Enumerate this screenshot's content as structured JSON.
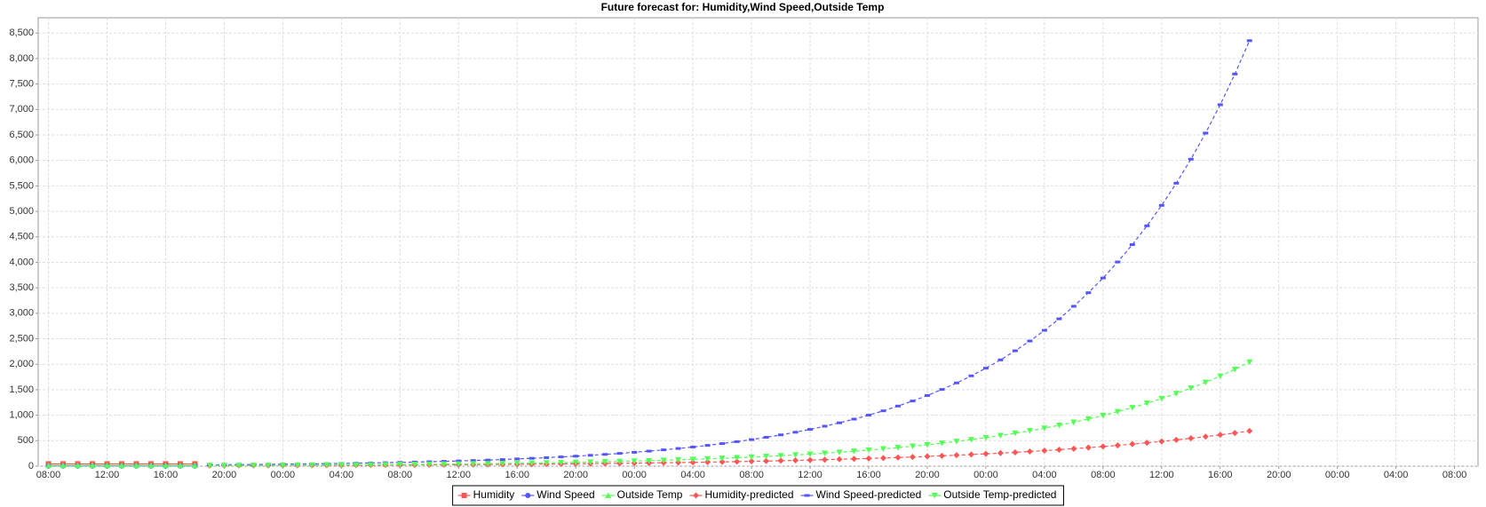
{
  "chart_data": {
    "type": "line",
    "title": "Future forecast for: Humidity,Wind Speed,Outside Temp",
    "categories": [
      "08:00",
      null,
      null,
      null,
      "12:00",
      null,
      null,
      null,
      "16:00",
      null,
      null,
      null,
      "20:00",
      null,
      null,
      null,
      "00:00",
      null,
      null,
      null,
      "04:00",
      null,
      null,
      null,
      "08:00",
      null,
      null,
      null,
      "12:00",
      null,
      null,
      null,
      "16:00",
      null,
      null,
      null,
      "20:00",
      null,
      null,
      null,
      "00:00",
      null,
      null,
      null,
      "04:00",
      null,
      null,
      null,
      "08:00",
      null,
      null,
      null,
      "12:00",
      null,
      null,
      null,
      "16:00",
      null,
      null,
      null,
      "20:00",
      null,
      null,
      null,
      "00:00",
      null,
      null,
      null,
      "04:00",
      null,
      null,
      null,
      "08:00",
      null,
      null,
      null,
      "12:00",
      null,
      null,
      null,
      "16:00",
      null,
      null,
      null,
      "20:00",
      null,
      null,
      null,
      "00:00",
      null,
      null,
      null,
      "04:00",
      null,
      null,
      null,
      "08:00"
    ],
    "ylim": [
      0,
      8800
    ],
    "yticks": [
      0,
      500,
      {
        "value": 1000,
        "label": "1,000"
      },
      {
        "value": 1500,
        "label": "1,500"
      },
      {
        "value": 2000,
        "label": "2,000"
      },
      {
        "value": 2500,
        "label": "2,500"
      },
      {
        "value": 3000,
        "label": "3,000"
      },
      {
        "value": 3500,
        "label": "3,500"
      },
      {
        "value": 4000,
        "label": "4,000"
      },
      {
        "value": 4500,
        "label": "4,500"
      },
      {
        "value": 5000,
        "label": "5,000"
      },
      {
        "value": 5500,
        "label": "5,500"
      },
      {
        "value": 6000,
        "label": "6,000"
      },
      {
        "value": 6500,
        "label": "6,500"
      },
      {
        "value": 7000,
        "label": "7,000"
      },
      {
        "value": 7500,
        "label": "7,500"
      },
      {
        "value": 8000,
        "label": "8,000"
      },
      {
        "value": 8500,
        "label": "8,500"
      }
    ],
    "grid": true,
    "legend": "bottom",
    "series": [
      {
        "name": "Humidity",
        "color": "#ff5555",
        "marker": "square",
        "dashed": false,
        "values": [
          45,
          45,
          45,
          45,
          45,
          45,
          45,
          45,
          45,
          45,
          45,
          null,
          null,
          null,
          null,
          null,
          null,
          null,
          null,
          null,
          null,
          null,
          null,
          null,
          null,
          null,
          null,
          null,
          null,
          null,
          null,
          null,
          null,
          null,
          null,
          null,
          null,
          null,
          null,
          null,
          null,
          null,
          null,
          null,
          null,
          null,
          null,
          null,
          null,
          null,
          null,
          null,
          null,
          null,
          null,
          null,
          null,
          null,
          null,
          null,
          null,
          null,
          null,
          null,
          null,
          null,
          null,
          null,
          null,
          null,
          null,
          null,
          null,
          null,
          null,
          null,
          null,
          null,
          null,
          null,
          null,
          null,
          null,
          null,
          null,
          null,
          null,
          null,
          null,
          null,
          null,
          null,
          null,
          null,
          null,
          null,
          null
        ]
      },
      {
        "name": "Wind Speed",
        "color": "#5555ff",
        "marker": "circle",
        "dashed": false,
        "values": [
          5,
          5,
          5,
          5,
          5,
          5,
          5,
          5,
          5,
          5,
          5,
          null,
          null,
          null,
          null,
          null,
          null,
          null,
          null,
          null,
          null,
          null,
          null,
          null,
          null,
          null,
          null,
          null,
          null,
          null,
          null,
          null,
          null,
          null,
          null,
          null,
          null,
          null,
          null,
          null,
          null,
          null,
          null,
          null,
          null,
          null,
          null,
          null,
          null,
          null,
          null,
          null,
          null,
          null,
          null,
          null,
          null,
          null,
          null,
          null,
          null,
          null,
          null,
          null,
          null,
          null,
          null,
          null,
          null,
          null,
          null,
          null,
          null,
          null,
          null,
          null,
          null,
          null,
          null,
          null,
          null,
          null,
          null,
          null,
          null,
          null,
          null,
          null,
          null,
          null,
          null,
          null,
          null,
          null,
          null,
          null,
          null
        ]
      },
      {
        "name": "Outside Temp",
        "color": "#55ff55",
        "marker": "triangle-up",
        "dashed": false,
        "values": [
          15,
          15,
          15,
          15,
          15,
          15,
          15,
          15,
          15,
          15,
          15,
          null,
          null,
          null,
          null,
          null,
          null,
          null,
          null,
          null,
          null,
          null,
          null,
          null,
          null,
          null,
          null,
          null,
          null,
          null,
          null,
          null,
          null,
          null,
          null,
          null,
          null,
          null,
          null,
          null,
          null,
          null,
          null,
          null,
          null,
          null,
          null,
          null,
          null,
          null,
          null,
          null,
          null,
          null,
          null,
          null,
          null,
          null,
          null,
          null,
          null,
          null,
          null,
          null,
          null,
          null,
          null,
          null,
          null,
          null,
          null,
          null,
          null,
          null,
          null,
          null,
          null,
          null,
          null,
          null,
          null,
          null,
          null,
          null,
          null,
          null,
          null,
          null,
          null,
          null,
          null,
          null,
          null,
          null,
          null,
          null,
          null
        ]
      },
      {
        "name": "Humidity-predicted",
        "color": "#ff5555",
        "marker": "diamond",
        "dashed": true,
        "values": [
          null,
          null,
          null,
          null,
          null,
          null,
          null,
          null,
          null,
          null,
          null,
          11,
          12,
          12,
          13,
          14,
          15,
          15,
          16,
          17,
          18,
          19,
          21,
          22,
          23,
          25,
          26,
          28,
          29,
          31,
          33,
          35,
          37,
          39,
          42,
          44,
          47,
          50,
          53,
          56,
          59,
          63,
          67,
          71,
          75,
          80,
          84,
          89,
          95,
          100,
          106,
          113,
          120,
          127,
          134,
          143,
          151,
          160,
          170,
          180,
          191,
          203,
          215,
          228,
          241,
          256,
          271,
          288,
          305,
          323,
          343,
          363,
          385,
          408,
          433,
          459,
          486,
          516,
          547,
          579,
          614,
          651,
          690,
          null,
          null,
          null,
          null,
          null,
          null,
          null,
          null,
          null,
          null,
          null,
          null,
          null,
          null
        ]
      },
      {
        "name": "Wind Speed-predicted",
        "color": "#5555ff",
        "marker": "rect",
        "dashed": true,
        "values": [
          null,
          null,
          null,
          null,
          null,
          null,
          null,
          null,
          null,
          null,
          null,
          26,
          28,
          30,
          33,
          35,
          38,
          42,
          45,
          49,
          53,
          58,
          63,
          68,
          74,
          80,
          87,
          94,
          102,
          111,
          120,
          130,
          142,
          154,
          167,
          181,
          196,
          213,
          231,
          250,
          272,
          295,
          320,
          347,
          376,
          408,
          443,
          481,
          521,
          566,
          614,
          666,
          722,
          784,
          850,
          923,
          1001,
          1086,
          1179,
          1279,
          1387,
          1505,
          1633,
          1772,
          1923,
          2086,
          2264,
          2456,
          2665,
          2891,
          3137,
          3404,
          3693,
          4007,
          4348,
          4717,
          5118,
          5553,
          6025,
          6537,
          7093,
          7696,
          8350,
          null,
          null,
          null,
          null,
          null,
          null,
          null,
          null,
          null,
          null,
          null,
          null,
          null,
          null
        ]
      },
      {
        "name": "Outside Temp-predicted",
        "color": "#55ff55",
        "marker": "triangle-down",
        "dashed": true,
        "values": [
          null,
          null,
          null,
          null,
          null,
          null,
          null,
          null,
          null,
          null,
          null,
          12,
          13,
          14,
          15,
          16,
          18,
          19,
          20,
          22,
          24,
          25,
          27,
          29,
          32,
          34,
          36,
          39,
          42,
          45,
          49,
          52,
          56,
          60,
          65,
          70,
          75,
          81,
          87,
          93,
          100,
          107,
          115,
          124,
          133,
          143,
          154,
          165,
          178,
          191,
          205,
          220,
          236,
          254,
          273,
          293,
          315,
          339,
          364,
          391,
          420,
          451,
          485,
          521,
          560,
          601,
          646,
          694,
          746,
          802,
          862,
          926,
          995,
          1069,
          1148,
          1234,
          1326,
          1425,
          1531,
          1645,
          1767,
          1899,
          2040,
          null,
          null,
          null,
          null,
          null,
          null,
          null,
          null,
          null,
          null,
          null,
          null,
          null,
          null
        ]
      }
    ]
  }
}
